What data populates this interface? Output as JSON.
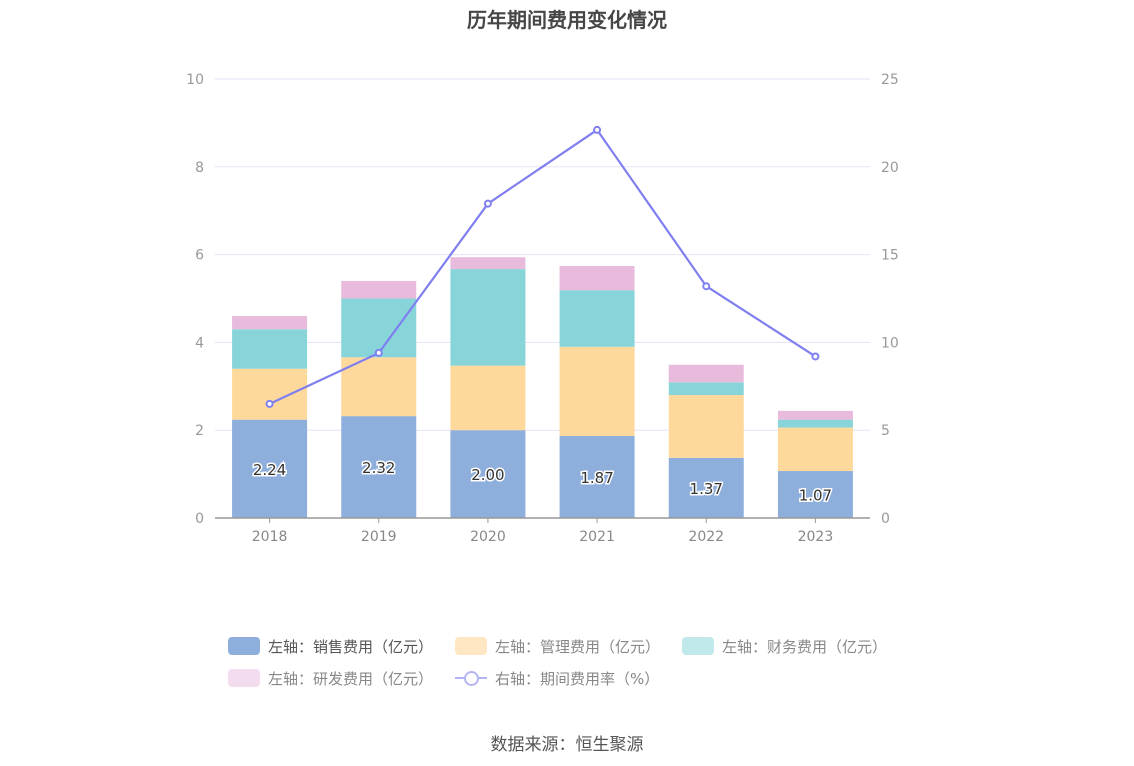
{
  "title": "历年期间费用变化情况",
  "source": "数据来源：恒生聚源",
  "chart_data": {
    "type": "bar",
    "stacked": true,
    "categories": [
      "2018",
      "2019",
      "2020",
      "2021",
      "2022",
      "2023"
    ],
    "left_axis": {
      "min": 0,
      "max": 10,
      "ticks": [
        "0",
        "2",
        "4",
        "6",
        "8",
        "10"
      ]
    },
    "right_axis": {
      "min": 0,
      "max": 25,
      "ticks": [
        "0",
        "5",
        "10",
        "15",
        "20",
        "25"
      ]
    },
    "series": [
      {
        "name": "左轴：销售费用（亿元）",
        "type": "bar",
        "color": "#8eaedb",
        "values": [
          2.24,
          2.32,
          2.0,
          1.87,
          1.37,
          1.07
        ],
        "labels": [
          "2.24",
          "2.32",
          "2.00",
          "1.87",
          "1.37",
          "1.07"
        ]
      },
      {
        "name": "左轴：管理费用（亿元）",
        "type": "bar",
        "color": "#fed99b",
        "values": [
          1.16,
          1.34,
          1.47,
          2.03,
          1.43,
          0.99
        ]
      },
      {
        "name": "左轴：财务费用（亿元）",
        "type": "bar",
        "color": "#88d5d9",
        "values": [
          0.9,
          1.34,
          2.2,
          1.29,
          0.29,
          0.18
        ]
      },
      {
        "name": "左轴：研发费用（亿元）",
        "type": "bar",
        "color": "#e8bbdd",
        "values": [
          0.3,
          0.4,
          0.27,
          0.55,
          0.4,
          0.2
        ]
      },
      {
        "name": "右轴：期间费用率（%）",
        "type": "line",
        "axis": "right",
        "color": "#7f7ff0",
        "values": [
          6.5,
          9.4,
          17.9,
          22.1,
          13.2,
          9.2
        ]
      }
    ],
    "legend": {
      "position": "bottom"
    },
    "grid": true
  }
}
